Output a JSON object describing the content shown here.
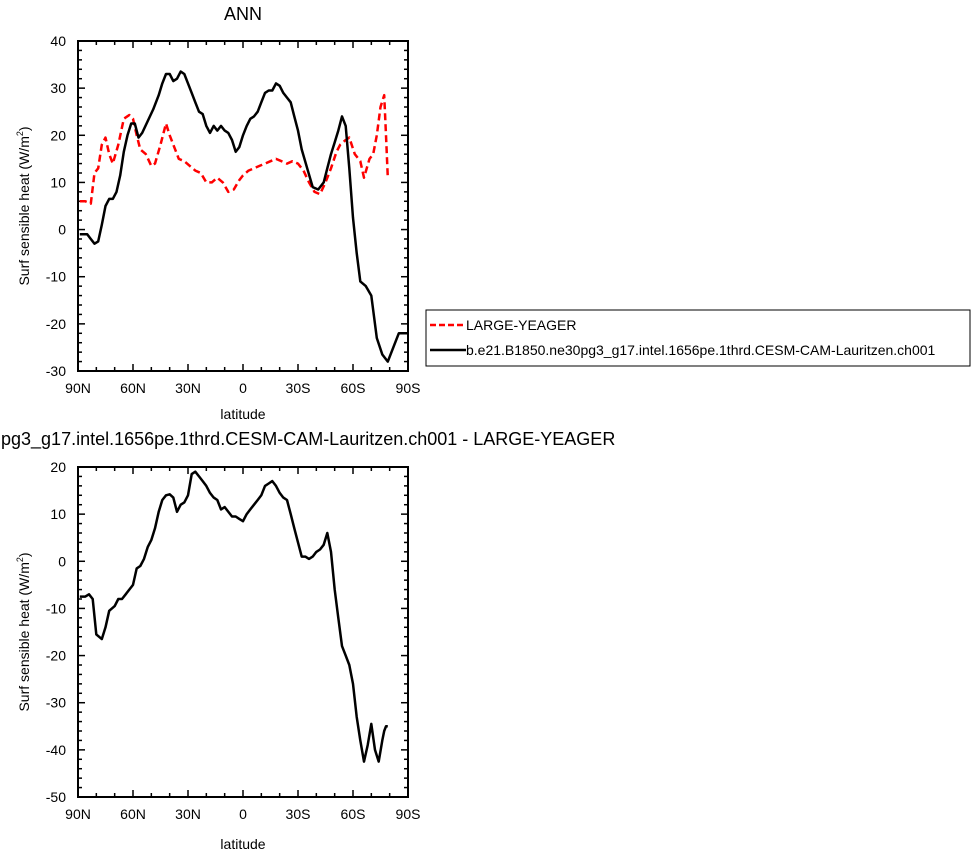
{
  "chart_data": [
    {
      "type": "line",
      "title": "ANN",
      "xlabel": "latitude",
      "ylabel": "Surf sensible heat (W/m",
      "ylabel_sup": "2",
      "ylabel_suffix": ")",
      "x_ticks": [
        -90,
        -60,
        -30,
        0,
        30,
        60,
        90
      ],
      "x_tick_labels": [
        "90N",
        "60N",
        "30N",
        "0",
        "30S",
        "60S",
        "90S"
      ],
      "xlim": [
        -90,
        90
      ],
      "ylim": [
        -30,
        40
      ],
      "y_ticks": [
        -30,
        -20,
        -10,
        0,
        10,
        20,
        30,
        40
      ],
      "y_tick_labels": [
        "-30",
        "-20",
        "-10",
        "0",
        "10",
        "20",
        "30",
        "40"
      ],
      "legend_position": "right",
      "series": [
        {
          "name": "LARGE-YEAGER",
          "color": "#ff0000",
          "dash": "dashed",
          "x": [
            -89,
            -86,
            -83,
            -81,
            -79,
            -77,
            -75,
            -73,
            -71,
            -68,
            -65,
            -62,
            -60,
            -58,
            -56,
            -53,
            -50,
            -48,
            -45,
            -42,
            -40,
            -38,
            -35,
            -32,
            -29,
            -26,
            -23,
            -20,
            -17,
            -14,
            -11,
            -8,
            -5,
            -2,
            0,
            3,
            6,
            9,
            12,
            15,
            18,
            21,
            24,
            27,
            30,
            33,
            36,
            39,
            42,
            45,
            48,
            51,
            53,
            56,
            58,
            61,
            64,
            66,
            69,
            71,
            73,
            75,
            77,
            78,
            79
          ],
          "y": [
            6.0,
            6.0,
            5.5,
            12.0,
            13.0,
            18.0,
            19.5,
            16.0,
            14.0,
            18.0,
            23.5,
            24.3,
            23.5,
            20.0,
            17.0,
            16.0,
            13.5,
            14.0,
            18.0,
            22.5,
            20.0,
            18.0,
            15.0,
            14.5,
            13.5,
            12.5,
            12.0,
            10.0,
            10.0,
            11.0,
            10.0,
            8.0,
            8.5,
            10.5,
            11.5,
            12.5,
            13.0,
            13.5,
            14.0,
            14.5,
            15.0,
            14.5,
            14.0,
            14.5,
            14.0,
            12.5,
            10.0,
            8.0,
            7.5,
            10.0,
            13.0,
            16.5,
            18.0,
            19.0,
            19.5,
            16.0,
            14.5,
            11.0,
            15.0,
            16.0,
            20.0,
            26.0,
            28.5,
            20.0,
            11.0
          ]
        },
        {
          "name": "b.e21.B1850.ne30pg3_g17.intel.1656pe.1thrd.CESM-CAM-Lauritzen.ch001",
          "color": "#000000",
          "dash": "solid",
          "x": [
            -89,
            -87,
            -85,
            -83,
            -81,
            -79,
            -77,
            -75,
            -73,
            -71,
            -69,
            -67,
            -65,
            -63,
            -61,
            -59,
            -57,
            -55,
            -52,
            -49,
            -46,
            -44,
            -42,
            -40,
            -38,
            -36,
            -34,
            -32,
            -30,
            -28,
            -26,
            -24,
            -22,
            -20,
            -18,
            -16,
            -14,
            -12,
            -10,
            -8,
            -6,
            -4,
            -2,
            0,
            2,
            4,
            6,
            8,
            10,
            12,
            14,
            16,
            18,
            20,
            22,
            24,
            26,
            28,
            30,
            32,
            35,
            38,
            41,
            44,
            46,
            48,
            50,
            52,
            54,
            56,
            58,
            60,
            62,
            64,
            67,
            70,
            73,
            76,
            79,
            82,
            85,
            87,
            90
          ],
          "y": [
            -1.0,
            -1.0,
            -1.0,
            -2.0,
            -3.0,
            -2.5,
            1.0,
            5.0,
            6.5,
            6.5,
            8.0,
            11.5,
            16.5,
            20.0,
            22.5,
            22.5,
            19.5,
            20.5,
            23.0,
            25.5,
            28.5,
            31.0,
            33.0,
            33.0,
            31.5,
            32.0,
            33.5,
            33.0,
            31.0,
            29.0,
            27.0,
            25.0,
            24.5,
            22.0,
            20.5,
            22.0,
            21.0,
            22.0,
            21.0,
            20.5,
            19.0,
            16.5,
            17.5,
            20.0,
            22.0,
            23.5,
            24.0,
            25.0,
            27.0,
            29.0,
            29.5,
            29.5,
            31.0,
            30.5,
            29.0,
            28.0,
            27.0,
            24.0,
            21.0,
            17.0,
            13.0,
            9.0,
            8.5,
            10.0,
            13.0,
            16.0,
            18.5,
            21.0,
            24.0,
            22.0,
            13.0,
            2.5,
            -5.0,
            -11.0,
            -12.0,
            -14.0,
            -23.0,
            -26.5,
            -28.0,
            -25.0,
            -22.0,
            -22.0,
            -22.0
          ]
        }
      ]
    },
    {
      "type": "line",
      "title": "pg3_g17.intel.1656pe.1thrd.CESM-CAM-Lauritzen.ch001 - LARGE-YEAGER",
      "xlabel": "latitude",
      "ylabel": "Surf sensible heat (W/m",
      "ylabel_sup": "2",
      "ylabel_suffix": ")",
      "x_ticks": [
        -90,
        -60,
        -30,
        0,
        30,
        60,
        90
      ],
      "x_tick_labels": [
        "90N",
        "60N",
        "30N",
        "0",
        "30S",
        "60S",
        "90S"
      ],
      "xlim": [
        -90,
        90
      ],
      "ylim": [
        -50,
        20
      ],
      "y_ticks": [
        -50,
        -40,
        -30,
        -20,
        -10,
        0,
        10,
        20
      ],
      "y_tick_labels": [
        "-50",
        "-40",
        "-30",
        "-20",
        "-10",
        "0",
        "10",
        "20"
      ],
      "series": [
        {
          "color": "#000000",
          "dash": "solid",
          "x": [
            -89,
            -86,
            -84,
            -82,
            -80,
            -77,
            -75,
            -73,
            -70,
            -68,
            -66,
            -64,
            -62,
            -60,
            -58,
            -56,
            -54,
            -52,
            -50,
            -48,
            -46,
            -44,
            -42,
            -40,
            -38,
            -36,
            -34,
            -32,
            -30,
            -28,
            -26,
            -24,
            -22,
            -20,
            -18,
            -16,
            -14,
            -12,
            -10,
            -8,
            -6,
            -4,
            -2,
            0,
            2,
            4,
            6,
            8,
            10,
            12,
            14,
            16,
            18,
            20,
            22,
            24,
            26,
            28,
            30,
            32,
            34,
            36,
            38,
            40,
            42,
            44,
            46,
            48,
            50,
            52,
            54,
            56,
            58,
            60,
            62,
            64,
            66,
            68,
            70,
            72,
            74,
            76,
            77,
            78,
            79
          ],
          "y": [
            -7.5,
            -7.5,
            -7.0,
            -8.0,
            -15.5,
            -16.5,
            -14.0,
            -10.5,
            -9.5,
            -8.0,
            -8.0,
            -7.0,
            -6.0,
            -5.0,
            -1.5,
            -1.0,
            0.5,
            3.0,
            4.5,
            7.0,
            10.5,
            13.0,
            14.0,
            14.2,
            13.5,
            10.5,
            12.0,
            12.5,
            14.0,
            18.5,
            19.0,
            18.0,
            17.0,
            16.0,
            14.5,
            13.5,
            13.0,
            11.0,
            11.5,
            10.5,
            9.5,
            9.5,
            9.0,
            8.5,
            10.0,
            11.0,
            12.0,
            13.0,
            14.0,
            16.0,
            16.5,
            17.0,
            16.0,
            14.5,
            13.5,
            13.0,
            10.0,
            7.0,
            4.0,
            1.0,
            1.0,
            0.5,
            1.0,
            2.0,
            2.5,
            3.5,
            6.0,
            2.0,
            -6.0,
            -12.0,
            -18.0,
            -20.0,
            -22.0,
            -26.0,
            -33.0,
            -38.0,
            -42.5,
            -39.0,
            -34.5,
            -40.0,
            -42.5,
            -38.0,
            -36.0,
            -35.0,
            -35.0
          ]
        }
      ]
    }
  ]
}
